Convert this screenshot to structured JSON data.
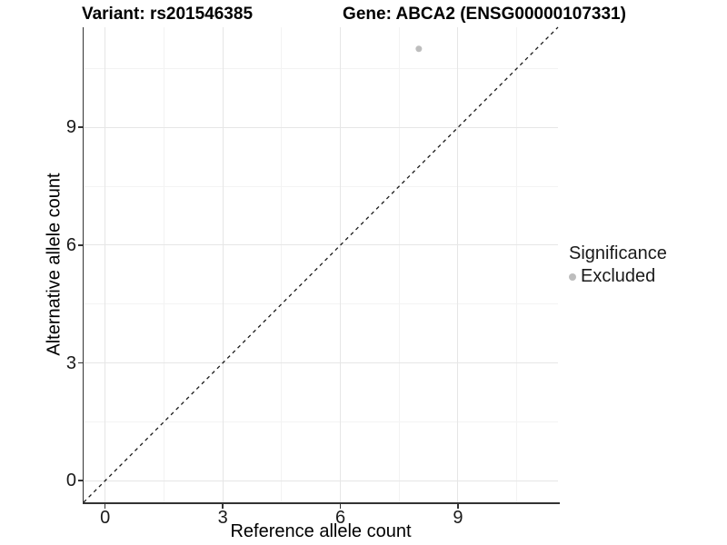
{
  "titles": {
    "left": "Variant: rs201546385",
    "right": "Gene: ABCA2 (ENSG00000107331)"
  },
  "chart_data": {
    "type": "scatter",
    "title_left": "Variant: rs201546385",
    "title_right": "Gene: ABCA2 (ENSG00000107331)",
    "xlabel": "Reference allele count",
    "ylabel": "Alternative allele count",
    "xlim": [
      -0.55,
      11.55
    ],
    "ylim": [
      -0.55,
      11.55
    ],
    "xticks": [
      0,
      3,
      6,
      9
    ],
    "yticks": [
      0,
      3,
      6,
      9
    ],
    "x_minor_ticks": [
      1.5,
      4.5,
      7.5,
      10.5
    ],
    "y_minor_ticks": [
      1.5,
      4.5,
      7.5,
      10.5
    ],
    "grid": true,
    "points": [
      {
        "x": 8,
        "y": 11,
        "significance": "Excluded"
      }
    ],
    "reference_line": {
      "kind": "identity y=x",
      "style": "dashed",
      "color": "#1a1a1a"
    },
    "legend": {
      "position": "right",
      "title": "Significance",
      "items": [
        {
          "label": "Excluded",
          "color": "#bdbdbd"
        }
      ]
    }
  },
  "colors": {
    "point": "#bdbdbd",
    "grid_major": "#e6e6e6",
    "grid_minor": "#f3f3f3",
    "axis": "#333333",
    "dashed_line": "#1a1a1a",
    "text": "#1a1a1a"
  }
}
